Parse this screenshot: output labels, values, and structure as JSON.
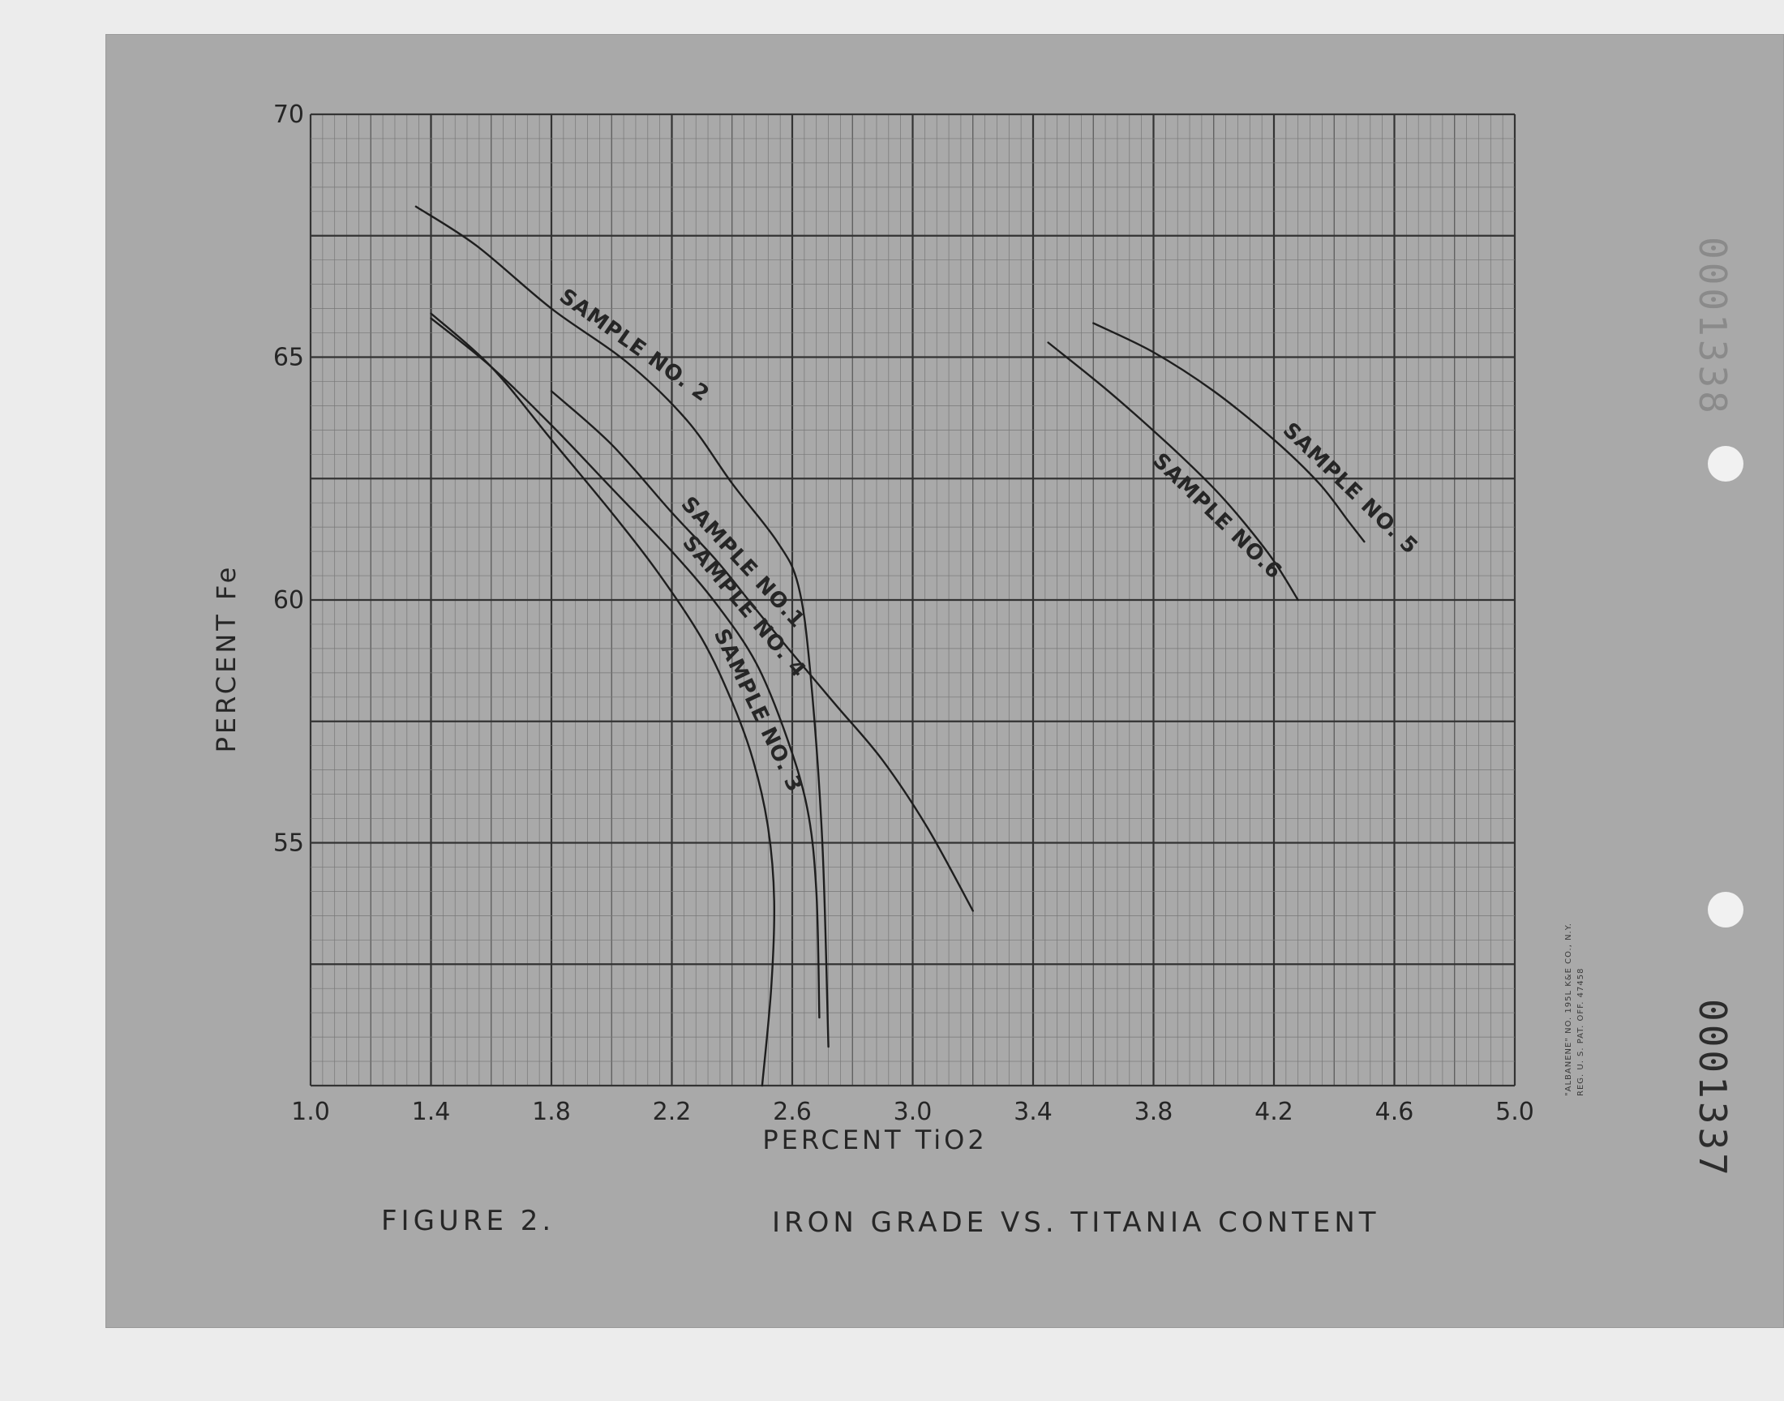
{
  "chart_data": {
    "type": "line",
    "title": "IRON GRADE VS. TITANIA CONTENT",
    "figure_label": "FIGURE 2.",
    "xlabel": "PERCENT TiO2",
    "ylabel": "PERCENT Fe",
    "xlim": [
      1.0,
      5.0
    ],
    "ylim": [
      50,
      70
    ],
    "x_ticks": [
      "1.0",
      "1.4",
      "1.8",
      "2.2",
      "2.6",
      "3.0",
      "3.4",
      "3.8",
      "4.2",
      "4.6",
      "5.0"
    ],
    "y_ticks": [
      "55",
      "60",
      "65",
      "70"
    ],
    "grid": true,
    "series": [
      {
        "name": "SAMPLE NO. 2",
        "x": [
          1.35,
          1.55,
          1.8,
          2.05,
          2.25,
          2.4,
          2.55,
          2.62,
          2.66,
          2.7,
          2.72
        ],
        "y": [
          68.1,
          67.3,
          66.0,
          64.9,
          63.7,
          62.4,
          61.2,
          60.3,
          58.5,
          55.0,
          50.8
        ]
      },
      {
        "name": "SAMPLE NO. 1",
        "x": [
          1.8,
          2.0,
          2.2,
          2.35,
          2.48,
          2.6,
          2.75,
          2.9,
          3.05,
          3.2
        ],
        "y": [
          64.3,
          63.2,
          61.8,
          60.8,
          59.8,
          58.9,
          57.8,
          56.7,
          55.3,
          53.6
        ]
      },
      {
        "name": "SAMPLE NO. 4",
        "x": [
          1.4,
          1.6,
          1.8,
          2.0,
          2.2,
          2.35,
          2.48,
          2.58,
          2.65,
          2.68,
          2.69
        ],
        "y": [
          65.8,
          64.8,
          63.6,
          62.3,
          61.0,
          59.9,
          58.7,
          57.2,
          55.7,
          54.0,
          51.4
        ]
      },
      {
        "name": "SAMPLE NO. 3",
        "x": [
          1.4,
          1.6,
          1.8,
          2.0,
          2.15,
          2.3,
          2.4,
          2.47,
          2.52,
          2.54,
          2.53,
          2.5
        ],
        "y": [
          65.9,
          64.8,
          63.3,
          61.8,
          60.6,
          59.2,
          57.9,
          56.7,
          55.3,
          53.8,
          52.0,
          50.0
        ]
      },
      {
        "name": "SAMPLE NO. 5",
        "x": [
          3.6,
          3.8,
          4.0,
          4.2,
          4.35,
          4.45,
          4.5
        ],
        "y": [
          65.7,
          65.1,
          64.3,
          63.3,
          62.4,
          61.6,
          61.2
        ]
      },
      {
        "name": "SAMPLE NO. 6",
        "x": [
          3.45,
          3.65,
          3.85,
          4.0,
          4.1,
          4.2,
          4.28
        ],
        "y": [
          65.3,
          64.3,
          63.2,
          62.3,
          61.6,
          60.8,
          60.0
        ]
      }
    ],
    "curve_labels": [
      {
        "text": "SAMPLE NO. 2",
        "series": "SAMPLE NO. 2"
      },
      {
        "text": "SAMPLE NO.1",
        "series": "SAMPLE NO. 1"
      },
      {
        "text": "SAMPLE NO. 4",
        "series": "SAMPLE NO. 4"
      },
      {
        "text": "SAMPLE NO. 3",
        "series": "SAMPLE NO. 3"
      },
      {
        "text": "SAMPLE NO. 5",
        "series": "SAMPLE NO. 5"
      },
      {
        "text": "SAMPLE NO.6",
        "series": "SAMPLE NO. 6"
      }
    ]
  },
  "paper_imprint": {
    "line1": "\"ALBANENE\" NO. 195L K&E CO., N.Y.",
    "line2": "REG. U. S. PAT. OFF.   47458"
  },
  "document_number": "0001337",
  "document_number_faint": "0001338"
}
